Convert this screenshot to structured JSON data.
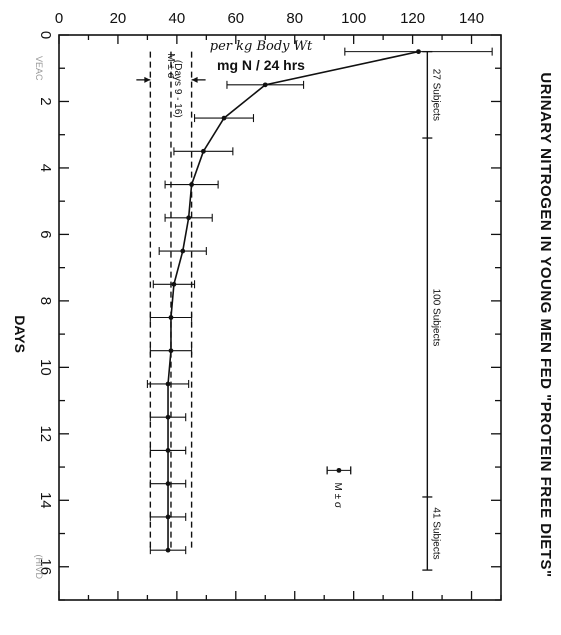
{
  "chart_data": {
    "type": "line",
    "title": "URINARY NITROGEN IN YOUNG MEN FED \"PROTEIN FREE DIETS\"",
    "xlabel": "DAYS",
    "ylabel": "mg N / 24 hrs",
    "ylabel_handwritten": "per kg Body Wt",
    "xlim": [
      0,
      17
    ],
    "ylim": [
      0,
      150
    ],
    "x_ticks": [
      0,
      2,
      4,
      6,
      8,
      10,
      12,
      14,
      16
    ],
    "y_ticks": [
      0,
      20,
      40,
      60,
      80,
      100,
      120,
      140
    ],
    "grid": false,
    "series": [
      {
        "x": [
          0.5,
          1.5,
          2.5,
          3.5,
          4.5,
          5.5,
          6.5,
          7.5,
          8.5,
          9.5,
          10.5,
          11.5,
          12.5,
          13.5,
          14.5,
          15.5
        ],
        "y": [
          122,
          70,
          56,
          49,
          45,
          44,
          42,
          39,
          38,
          38,
          37,
          37,
          37,
          37,
          37,
          37
        ],
        "sd": [
          25,
          13,
          10,
          10,
          9,
          8,
          8,
          7,
          7,
          7,
          7,
          6,
          6,
          6,
          6,
          6
        ]
      }
    ],
    "mean_band": {
      "mean": 38,
      "lower": 31,
      "upper": 45,
      "x_start": 0.5,
      "x_end": 15.5
    },
    "band_marker": {
      "mean": 38,
      "lower": 31,
      "upper": 45,
      "x": 1.35,
      "label": "M ± σ",
      "sublabel": "(Days 9 - 16)"
    },
    "legend_marker": {
      "x": 13.1,
      "mean": 95,
      "lower": 91,
      "upper": 99,
      "label": "M ± σ"
    },
    "subject_groups": [
      {
        "label": "27 Subjects",
        "x_start": 0.5,
        "x_end": 3.1
      },
      {
        "label": "100 Subjects",
        "x_start": 3.1,
        "x_end": 13.9
      },
      {
        "label": "41 Subjects",
        "x_start": 13.9,
        "x_end": 16.1
      }
    ],
    "subject_line_y": 125,
    "margin_notes": [
      "VEAC",
      "(HIVD"
    ]
  }
}
